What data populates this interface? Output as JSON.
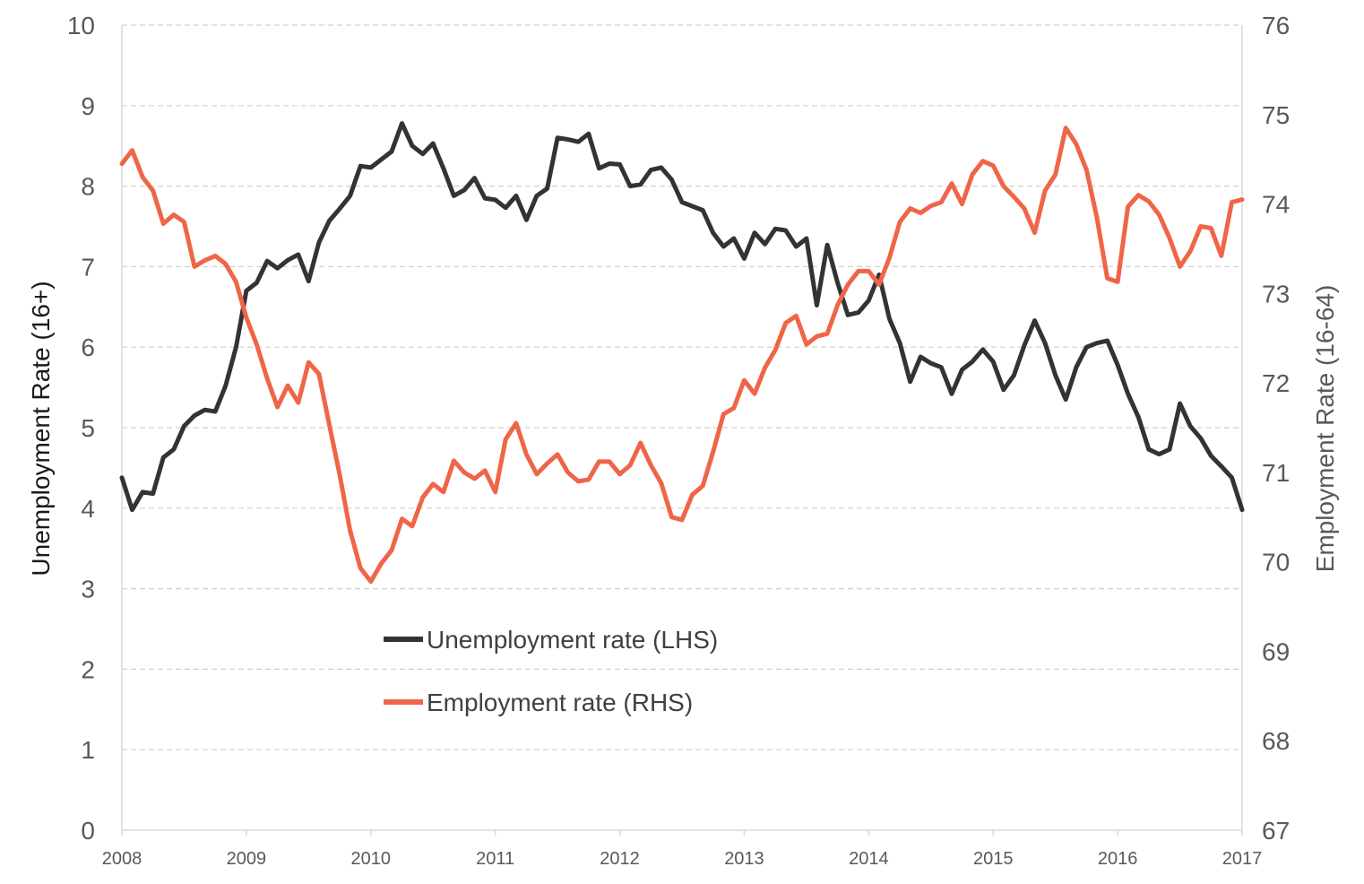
{
  "chart_data": {
    "type": "line",
    "title": "",
    "xlabel": "",
    "ylabel_left": "Unemployment Rate (16+)",
    "ylabel_right": "Employment Rate (16-64)",
    "x_ticks": [
      "2008",
      "2009",
      "2010",
      "2011",
      "2012",
      "2013",
      "2014",
      "2015",
      "2016",
      "2017"
    ],
    "x_range": [
      2008,
      2017
    ],
    "ylim_left": [
      0,
      10
    ],
    "yticks_left": [
      "0",
      "1",
      "2",
      "3",
      "4",
      "5",
      "6",
      "7",
      "8",
      "9",
      "10"
    ],
    "ylim_right": [
      67,
      76
    ],
    "yticks_right": [
      "67",
      "68",
      "69",
      "70",
      "71",
      "72",
      "73",
      "74",
      "75",
      "76"
    ],
    "grid": "horizontal dashed",
    "legend_position": "center-left",
    "series": [
      {
        "name": "Unemployment rate (LHS)",
        "axis": "left",
        "color": "#333333",
        "x": [
          2008.0,
          2008.083,
          2008.167,
          2008.25,
          2008.333,
          2008.417,
          2008.5,
          2008.583,
          2008.667,
          2008.75,
          2008.833,
          2008.917,
          2009.0,
          2009.083,
          2009.167,
          2009.25,
          2009.333,
          2009.417,
          2009.5,
          2009.583,
          2009.667,
          2009.75,
          2009.833,
          2009.917,
          2010.0,
          2010.083,
          2010.167,
          2010.25,
          2010.333,
          2010.417,
          2010.5,
          2010.583,
          2010.667,
          2010.75,
          2010.833,
          2010.917,
          2011.0,
          2011.083,
          2011.167,
          2011.25,
          2011.333,
          2011.417,
          2011.5,
          2011.583,
          2011.667,
          2011.75,
          2011.833,
          2011.917,
          2012.0,
          2012.083,
          2012.167,
          2012.25,
          2012.333,
          2012.417,
          2012.5,
          2012.583,
          2012.667,
          2012.75,
          2012.833,
          2012.917,
          2013.0,
          2013.083,
          2013.167,
          2013.25,
          2013.333,
          2013.417,
          2013.5,
          2013.583,
          2013.667,
          2013.75,
          2013.833,
          2013.917,
          2014.0,
          2014.083,
          2014.167,
          2014.25,
          2014.333,
          2014.417,
          2014.5,
          2014.583,
          2014.667,
          2014.75,
          2014.833,
          2014.917,
          2015.0,
          2015.083,
          2015.167,
          2015.25,
          2015.333,
          2015.417,
          2015.5,
          2015.583,
          2015.667,
          2015.75,
          2015.833,
          2015.917,
          2016.0,
          2016.083,
          2016.167,
          2016.25,
          2016.333,
          2016.417,
          2016.5,
          2016.583,
          2016.667,
          2016.75,
          2016.833,
          2016.917,
          2017.0
        ],
        "values": [
          4.38,
          3.98,
          4.2,
          4.18,
          4.63,
          4.73,
          5.02,
          5.15,
          5.22,
          5.2,
          5.52,
          6.0,
          6.7,
          6.8,
          7.07,
          6.98,
          7.08,
          7.15,
          6.82,
          7.3,
          7.57,
          7.72,
          7.88,
          8.25,
          8.23,
          8.33,
          8.43,
          8.78,
          8.5,
          8.4,
          8.53,
          8.22,
          7.88,
          7.95,
          8.1,
          7.85,
          7.83,
          7.73,
          7.88,
          7.58,
          7.88,
          7.97,
          8.6,
          8.58,
          8.55,
          8.65,
          8.22,
          8.28,
          8.27,
          8.0,
          8.02,
          8.2,
          8.23,
          8.08,
          7.8,
          7.75,
          7.7,
          7.42,
          7.25,
          7.35,
          7.1,
          7.42,
          7.28,
          7.47,
          7.45,
          7.25,
          7.35,
          6.52,
          7.27,
          6.8,
          6.4,
          6.43,
          6.58,
          6.9,
          6.35,
          6.05,
          5.57,
          5.88,
          5.8,
          5.75,
          5.42,
          5.72,
          5.82,
          5.97,
          5.82,
          5.47,
          5.65,
          6.02,
          6.33,
          6.05,
          5.65,
          5.35,
          5.75,
          6.0,
          6.05,
          6.08,
          5.78,
          5.42,
          5.13,
          4.73,
          4.67,
          4.73,
          5.3,
          5.02,
          4.87,
          4.65,
          4.52,
          4.38,
          3.98
        ]
      },
      {
        "name": "Employment rate (RHS)",
        "axis": "right",
        "color": "#ef6548",
        "x": [
          2008.0,
          2008.083,
          2008.167,
          2008.25,
          2008.333,
          2008.417,
          2008.5,
          2008.583,
          2008.667,
          2008.75,
          2008.833,
          2008.917,
          2009.0,
          2009.083,
          2009.167,
          2009.25,
          2009.333,
          2009.417,
          2009.5,
          2009.583,
          2009.667,
          2009.75,
          2009.833,
          2009.917,
          2010.0,
          2010.083,
          2010.167,
          2010.25,
          2010.333,
          2010.417,
          2010.5,
          2010.583,
          2010.667,
          2010.75,
          2010.833,
          2010.917,
          2011.0,
          2011.083,
          2011.167,
          2011.25,
          2011.333,
          2011.417,
          2011.5,
          2011.583,
          2011.667,
          2011.75,
          2011.833,
          2011.917,
          2012.0,
          2012.083,
          2012.167,
          2012.25,
          2012.333,
          2012.417,
          2012.5,
          2012.583,
          2012.667,
          2012.75,
          2012.833,
          2012.917,
          2013.0,
          2013.083,
          2013.167,
          2013.25,
          2013.333,
          2013.417,
          2013.5,
          2013.583,
          2013.667,
          2013.75,
          2013.833,
          2013.917,
          2014.0,
          2014.083,
          2014.167,
          2014.25,
          2014.333,
          2014.417,
          2014.5,
          2014.583,
          2014.667,
          2014.75,
          2014.833,
          2014.917,
          2015.0,
          2015.083,
          2015.167,
          2015.25,
          2015.333,
          2015.417,
          2015.5,
          2015.583,
          2015.667,
          2015.75,
          2015.833,
          2015.917,
          2016.0,
          2016.083,
          2016.167,
          2016.25,
          2016.333,
          2016.417,
          2016.5,
          2016.583,
          2016.667,
          2016.75,
          2016.833,
          2016.917,
          2017.0
        ],
        "values": [
          74.45,
          74.6,
          74.3,
          74.15,
          73.78,
          73.88,
          73.8,
          73.3,
          73.37,
          73.42,
          73.33,
          73.13,
          72.73,
          72.43,
          72.05,
          71.73,
          71.97,
          71.78,
          72.23,
          72.1,
          71.53,
          70.97,
          70.35,
          69.93,
          69.78,
          69.98,
          70.13,
          70.48,
          70.4,
          70.72,
          70.87,
          70.78,
          71.13,
          71.0,
          70.93,
          71.02,
          70.78,
          71.37,
          71.55,
          71.2,
          70.98,
          71.1,
          71.2,
          71.0,
          70.9,
          70.92,
          71.12,
          71.12,
          70.98,
          71.08,
          71.33,
          71.08,
          70.88,
          70.5,
          70.47,
          70.75,
          70.85,
          71.23,
          71.65,
          71.72,
          72.03,
          71.88,
          72.17,
          72.37,
          72.67,
          72.75,
          72.43,
          72.52,
          72.55,
          72.87,
          73.1,
          73.25,
          73.25,
          73.1,
          73.4,
          73.8,
          73.95,
          73.9,
          73.98,
          74.02,
          74.23,
          74.0,
          74.33,
          74.48,
          74.43,
          74.2,
          74.08,
          73.95,
          73.68,
          74.15,
          74.33,
          74.85,
          74.67,
          74.38,
          73.85,
          73.17,
          73.13,
          73.97,
          74.1,
          74.03,
          73.88,
          73.62,
          73.3,
          73.47,
          73.75,
          73.73,
          73.42,
          74.02,
          74.05
        ]
      }
    ]
  }
}
